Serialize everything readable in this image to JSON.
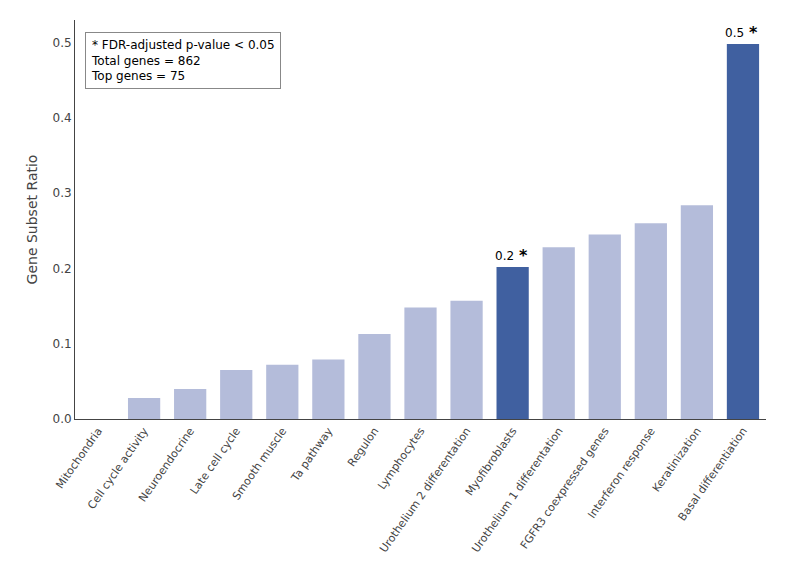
{
  "chart_data": {
    "type": "bar",
    "categories": [
      "Mitochondria",
      "Cell cycle activity",
      "Neuroendocrine",
      "Late cell cycle",
      "Smooth muscle",
      "Ta pathway",
      "Regulon",
      "Lymphocytes",
      "Urothelium 2 differentation",
      "Myofibroblasts",
      "Urothelium 1 differentation",
      "FGFR3 coexpressed genes",
      "Interferon response",
      "Keratinization",
      "Basal differentiation"
    ],
    "values": [
      0.0,
      0.028,
      0.04,
      0.065,
      0.072,
      0.079,
      0.113,
      0.148,
      0.157,
      0.202,
      0.228,
      0.245,
      0.26,
      0.284,
      0.498
    ],
    "value_labels": [
      null,
      null,
      null,
      null,
      null,
      null,
      null,
      null,
      null,
      "0.2",
      null,
      null,
      null,
      null,
      "0.5"
    ],
    "significance_labels": [
      null,
      null,
      null,
      null,
      null,
      null,
      null,
      null,
      null,
      "*",
      null,
      null,
      null,
      null,
      "*"
    ],
    "colors": [
      "#b4bcda",
      "#b4bcda",
      "#b4bcda",
      "#b4bcda",
      "#b4bcda",
      "#b4bcda",
      "#b4bcda",
      "#b4bcda",
      "#b4bcda",
      "#4060a0",
      "#b4bcda",
      "#b4bcda",
      "#b4bcda",
      "#b4bcda",
      "#4060a0"
    ],
    "ylabel": "Gene Subset Ratio",
    "annotation": "* FDR-adjusted p-value < 0.05\nTotal genes = 862\nTop genes = 75",
    "ylim": [
      0,
      0.53
    ],
    "yticks": [
      {
        "value": 0.0,
        "label": "0.0"
      },
      0.1,
      0.2,
      0.3,
      0.4,
      0.5
    ],
    "grid": false
  }
}
